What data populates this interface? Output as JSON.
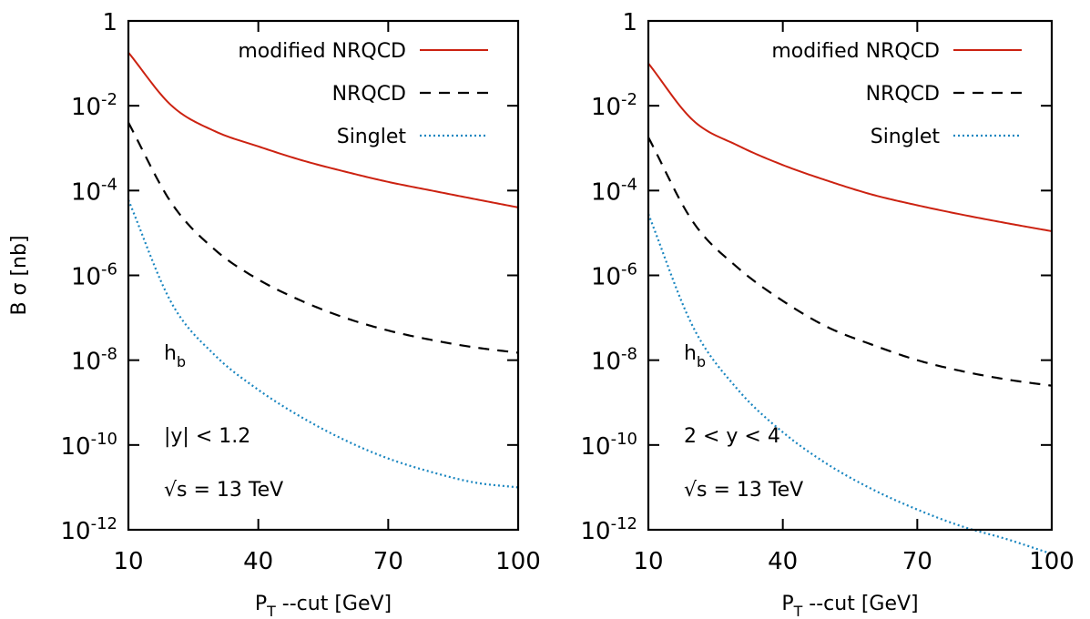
{
  "colors": {
    "modified": "#cc2211",
    "nrqcd": "#000000",
    "singlet": "#1a86c0"
  },
  "chart_data": [
    {
      "type": "line",
      "log_y": true,
      "xlim": [
        10,
        100
      ],
      "ylim": [
        1e-12,
        1
      ],
      "x_ticks": [
        "10",
        "40",
        "70",
        "100"
      ],
      "y_ticks": [
        {
          "base": "1",
          "exp": ""
        },
        {
          "base": "10",
          "exp": "-2"
        },
        {
          "base": "10",
          "exp": "-4"
        },
        {
          "base": "10",
          "exp": "-6"
        },
        {
          "base": "10",
          "exp": "-8"
        },
        {
          "base": "10",
          "exp": "-10"
        },
        {
          "base": "10",
          "exp": "-12"
        }
      ],
      "xlabel": {
        "main": "P",
        "sub": "T",
        "rest": " --cut [GeV]"
      },
      "ylabel": "B σ [nb]",
      "legend_position": "top-right",
      "annotations": {
        "particle": {
          "main": "h",
          "sub": "b"
        },
        "rapidity": "|y| < 1.2",
        "energy": "√s = 13 TeV"
      },
      "x": [
        10,
        20,
        30,
        40,
        50,
        60,
        70,
        80,
        90,
        100
      ],
      "series": [
        {
          "name": "modified NRQCD",
          "style": "solid",
          "color_key": "modified",
          "values": [
            0.18,
            0.01,
            0.0025,
            0.0011,
            0.00052,
            0.00028,
            0.00016,
            0.0001,
            6.3e-05,
            4e-05
          ]
        },
        {
          "name": "NRQCD",
          "style": "dashed",
          "color_key": "nrqcd",
          "values": [
            0.004,
            5e-05,
            4e-06,
            8e-07,
            2.5e-07,
            1e-07,
            5e-08,
            3e-08,
            2e-08,
            1.5e-08
          ]
        },
        {
          "name": "Singlet",
          "style": "dotted",
          "color_key": "singlet",
          "values": [
            6e-05,
            2.2e-07,
            1.3e-08,
            2e-09,
            4.5e-10,
            1.3e-10,
            4.8e-11,
            2.3e-11,
            1.3e-11,
            1e-11
          ]
        }
      ]
    },
    {
      "type": "line",
      "log_y": true,
      "xlim": [
        10,
        100
      ],
      "ylim": [
        1e-12,
        1
      ],
      "x_ticks": [
        "10",
        "40",
        "70",
        "100"
      ],
      "y_ticks": [
        {
          "base": "1",
          "exp": ""
        },
        {
          "base": "10",
          "exp": "-2"
        },
        {
          "base": "10",
          "exp": "-4"
        },
        {
          "base": "10",
          "exp": "-6"
        },
        {
          "base": "10",
          "exp": "-8"
        },
        {
          "base": "10",
          "exp": "-10"
        },
        {
          "base": "10",
          "exp": "-12"
        }
      ],
      "xlabel": {
        "main": "P",
        "sub": "T",
        "rest": " --cut [GeV]"
      },
      "ylabel": "",
      "legend_position": "top-right",
      "annotations": {
        "particle": {
          "main": "h",
          "sub": "b"
        },
        "rapidity": "2 < y < 4",
        "energy": "√s = 13 TeV"
      },
      "x": [
        10,
        20,
        30,
        40,
        50,
        60,
        70,
        80,
        90,
        100
      ],
      "series": [
        {
          "name": "modified NRQCD",
          "style": "solid",
          "color_key": "modified",
          "values": [
            0.1,
            0.0045,
            0.00115,
            0.0004,
            0.00017,
            8e-05,
            4.5e-05,
            2.7e-05,
            1.7e-05,
            1.1e-05
          ]
        },
        {
          "name": "NRQCD",
          "style": "dashed",
          "color_key": "nrqcd",
          "values": [
            0.0018,
            1.8e-05,
            1.5e-06,
            2.5e-07,
            6e-08,
            2.3e-08,
            1e-08,
            5.5e-09,
            3.5e-09,
            2.5e-09
          ]
        },
        {
          "name": "Singlet",
          "style": "dotted",
          "color_key": "singlet",
          "values": [
            2.8e-05,
            6e-08,
            2e-09,
            2e-10,
            3.5e-11,
            9e-12,
            3e-12,
            1.2e-12,
            6e-13,
            2.7e-13
          ]
        }
      ]
    }
  ]
}
